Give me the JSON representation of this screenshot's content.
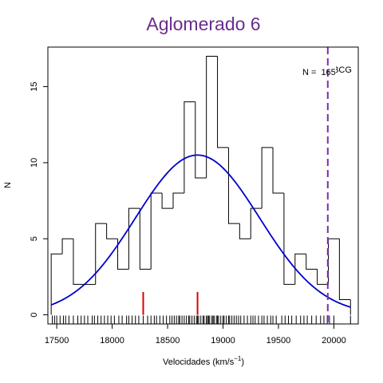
{
  "chart_data": {
    "type": "histogram",
    "title": "Aglomerado 6",
    "title_color": "#6a2c8e",
    "xlabel": "Velocidades  (km/s",
    "xlabel_exp": "−1",
    "xlabel_close": ")",
    "ylabel": "N",
    "xlim": [
      17420,
      20220
    ],
    "ylim": [
      -0.6,
      17.6
    ],
    "x_ticks": [
      17500,
      18000,
      18500,
      19000,
      19500,
      20000
    ],
    "x_tick_labels": [
      "17500",
      "18000",
      "18500",
      "19000",
      "19500",
      "20000"
    ],
    "y_ticks": [
      0,
      5,
      10,
      15
    ],
    "y_tick_labels": [
      "0",
      "5",
      "10",
      "15"
    ],
    "bins": {
      "edges": [
        17450,
        17550,
        17650,
        17750,
        17850,
        17950,
        18050,
        18150,
        18250,
        18350,
        18450,
        18550,
        18650,
        18750,
        18850,
        18950,
        19050,
        19150,
        19250,
        19350,
        19450,
        19550,
        19650,
        19750,
        19850,
        19950,
        20050,
        20150
      ],
      "counts": [
        4,
        5,
        2,
        2,
        6,
        5,
        3,
        7,
        3,
        8,
        7,
        8,
        14,
        9,
        17,
        11,
        6,
        5,
        7,
        11,
        8,
        2,
        4,
        3,
        2,
        5,
        1
      ]
    },
    "gaussian_fit": {
      "mean": 18770,
      "sd": 560,
      "peak": 10.5,
      "color": "#0000cc"
    },
    "red_markers": {
      "x": [
        18280,
        18770
      ],
      "height": 1.5,
      "color": "#dd0000"
    },
    "bcg": {
      "x": 19945,
      "label": "BCG",
      "color": "#7b2fa8"
    },
    "n_label": "N =",
    "n_value": "165",
    "rug": [
      17460,
      17480,
      17500,
      17530,
      17560,
      17580,
      17610,
      17650,
      17690,
      17720,
      17750,
      17780,
      17820,
      17840,
      17870,
      17900,
      17930,
      17960,
      17990,
      18020,
      18060,
      18090,
      18130,
      18150,
      18180,
      18210,
      18240,
      18280,
      18320,
      18350,
      18380,
      18400,
      18430,
      18460,
      18490,
      18520,
      18540,
      18560,
      18580,
      18600,
      18610,
      18630,
      18650,
      18670,
      18690,
      18700,
      18720,
      18740,
      18760,
      18770,
      18780,
      18800,
      18820,
      18830,
      18850,
      18860,
      18870,
      18880,
      18900,
      18910,
      18920,
      18940,
      18950,
      18960,
      18980,
      19000,
      19010,
      19030,
      19050,
      19060,
      19080,
      19100,
      19120,
      19140,
      19160,
      19190,
      19220,
      19250,
      19270,
      19290,
      19320,
      19350,
      19370,
      19400,
      19430,
      19450,
      19480,
      19530,
      19560,
      19590,
      19620,
      19660,
      19700,
      19730,
      19760,
      19800,
      19840,
      19880,
      19910,
      19940,
      19960,
      20000,
      20150
    ]
  }
}
